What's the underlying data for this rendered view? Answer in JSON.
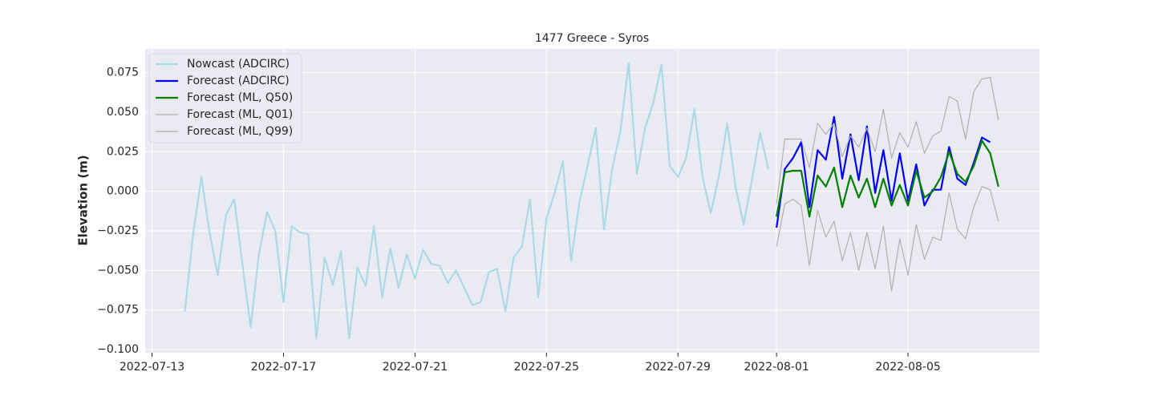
{
  "chart_data": {
    "type": "line",
    "title": "1477 Greece - Syros",
    "y_label": "Elevation (m)",
    "xlim": [
      "2022-07-12 19:00",
      "2022-08-09 00:00"
    ],
    "xticks": [
      "2022-07-13",
      "2022-07-17",
      "2022-07-21",
      "2022-07-25",
      "2022-07-29",
      "2022-08-01",
      "2022-08-05"
    ],
    "ylim": [
      -0.102,
      0.09
    ],
    "yticks": [
      {
        "value": -0.1,
        "label": "−0.100"
      },
      {
        "value": -0.075,
        "label": "−0.075"
      },
      {
        "value": -0.05,
        "label": "−0.050"
      },
      {
        "value": -0.025,
        "label": "−0.025"
      },
      {
        "value": 0,
        "label": "0.000"
      },
      {
        "value": 0.025,
        "label": "0.025"
      },
      {
        "value": 0.05,
        "label": "0.050"
      },
      {
        "value": 0.075,
        "label": "0.075"
      }
    ],
    "grid": true,
    "legend": "upper left",
    "x": [
      "2022-07-14 00:00",
      "2022-07-14 06:00",
      "2022-07-14 12:00",
      "2022-07-14 18:00",
      "2022-07-15 00:00",
      "2022-07-15 06:00",
      "2022-07-15 12:00",
      "2022-07-15 18:00",
      "2022-07-16 00:00",
      "2022-07-16 06:00",
      "2022-07-16 12:00",
      "2022-07-16 18:00",
      "2022-07-17 00:00",
      "2022-07-17 06:00",
      "2022-07-17 12:00",
      "2022-07-17 18:00",
      "2022-07-18 00:00",
      "2022-07-18 06:00",
      "2022-07-18 12:00",
      "2022-07-18 18:00",
      "2022-07-19 00:00",
      "2022-07-19 06:00",
      "2022-07-19 12:00",
      "2022-07-19 18:00",
      "2022-07-20 00:00",
      "2022-07-20 06:00",
      "2022-07-20 12:00",
      "2022-07-20 18:00",
      "2022-07-21 00:00",
      "2022-07-21 06:00",
      "2022-07-21 12:00",
      "2022-07-21 18:00",
      "2022-07-22 00:00",
      "2022-07-22 06:00",
      "2022-07-22 12:00",
      "2022-07-22 18:00",
      "2022-07-23 00:00",
      "2022-07-23 06:00",
      "2022-07-23 12:00",
      "2022-07-23 18:00",
      "2022-07-24 00:00",
      "2022-07-24 06:00",
      "2022-07-24 12:00",
      "2022-07-24 18:00",
      "2022-07-25 00:00",
      "2022-07-25 06:00",
      "2022-07-25 12:00",
      "2022-07-25 18:00",
      "2022-07-26 00:00",
      "2022-07-26 06:00",
      "2022-07-26 12:00",
      "2022-07-26 18:00",
      "2022-07-27 00:00",
      "2022-07-27 06:00",
      "2022-07-27 12:00",
      "2022-07-27 18:00",
      "2022-07-28 00:00",
      "2022-07-28 06:00",
      "2022-07-28 12:00",
      "2022-07-28 18:00",
      "2022-07-29 00:00",
      "2022-07-29 06:00",
      "2022-07-29 12:00",
      "2022-07-29 18:00",
      "2022-07-30 00:00",
      "2022-07-30 06:00",
      "2022-07-30 12:00",
      "2022-07-30 18:00",
      "2022-07-31 00:00",
      "2022-07-31 06:00",
      "2022-07-31 12:00",
      "2022-07-31 18:00",
      "2022-08-01 00:00",
      "2022-08-01 06:00",
      "2022-08-01 12:00",
      "2022-08-01 18:00",
      "2022-08-02 00:00",
      "2022-08-02 06:00",
      "2022-08-02 12:00",
      "2022-08-02 18:00",
      "2022-08-03 00:00",
      "2022-08-03 06:00",
      "2022-08-03 12:00",
      "2022-08-03 18:00",
      "2022-08-04 00:00",
      "2022-08-04 06:00",
      "2022-08-04 12:00",
      "2022-08-04 18:00",
      "2022-08-05 00:00",
      "2022-08-05 06:00",
      "2022-08-05 12:00",
      "2022-08-05 18:00",
      "2022-08-06 00:00",
      "2022-08-06 06:00",
      "2022-08-06 12:00",
      "2022-08-06 18:00",
      "2022-08-07 00:00",
      "2022-08-07 06:00",
      "2022-08-07 12:00",
      "2022-08-07 18:00"
    ],
    "series": [
      {
        "name": "Nowcast (ADCIRC)",
        "color": "#add8e6",
        "width": 2.2,
        "values": [
          -0.076,
          -0.027,
          0.009,
          -0.026,
          -0.053,
          -0.015,
          -0.005,
          -0.046,
          -0.086,
          -0.04,
          -0.013,
          -0.025,
          -0.07,
          -0.022,
          -0.026,
          -0.027,
          -0.093,
          -0.042,
          -0.059,
          -0.038,
          -0.093,
          -0.048,
          -0.06,
          -0.022,
          -0.067,
          -0.036,
          -0.061,
          -0.04,
          -0.055,
          -0.037,
          -0.046,
          -0.047,
          -0.058,
          -0.05,
          -0.061,
          -0.072,
          -0.07,
          -0.051,
          -0.049,
          -0.076,
          -0.042,
          -0.035,
          -0.005,
          -0.067,
          -0.017,
          -0.001,
          0.019,
          -0.044,
          -0.007,
          0.016,
          0.04,
          -0.024,
          0.014,
          0.038,
          0.081,
          0.011,
          0.04,
          0.056,
          0.08,
          0.016,
          0.009,
          0.021,
          0.052,
          0.009,
          -0.014,
          0.01,
          0.043,
          0.003,
          -0.021,
          0.007,
          0.037,
          0.014,
          null,
          null,
          null,
          null,
          null,
          null,
          null,
          null,
          null,
          null,
          null,
          null,
          null,
          null,
          null,
          null,
          null,
          null,
          null,
          null,
          null,
          null,
          null,
          null,
          null,
          null,
          null,
          null
        ]
      },
      {
        "name": "Forecast (ADCIRC)",
        "color": "#0000ff",
        "width": 2.2,
        "values": [
          null,
          null,
          null,
          null,
          null,
          null,
          null,
          null,
          null,
          null,
          null,
          null,
          null,
          null,
          null,
          null,
          null,
          null,
          null,
          null,
          null,
          null,
          null,
          null,
          null,
          null,
          null,
          null,
          null,
          null,
          null,
          null,
          null,
          null,
          null,
          null,
          null,
          null,
          null,
          null,
          null,
          null,
          null,
          null,
          null,
          null,
          null,
          null,
          null,
          null,
          null,
          null,
          null,
          null,
          null,
          null,
          null,
          null,
          null,
          null,
          null,
          null,
          null,
          null,
          null,
          null,
          null,
          null,
          null,
          null,
          null,
          null,
          -0.023,
          0.014,
          0.021,
          0.031,
          -0.01,
          0.026,
          0.02,
          0.047,
          0.008,
          0.036,
          0.007,
          0.041,
          -0.001,
          0.026,
          -0.006,
          0.024,
          -0.006,
          0.017,
          -0.009,
          0.001,
          0.001,
          0.028,
          0.008,
          0.004,
          0.018,
          0.034,
          0.031,
          null
        ]
      },
      {
        "name": "Forecast (ML, Q50)",
        "color": "#008000",
        "width": 2.2,
        "values": [
          null,
          null,
          null,
          null,
          null,
          null,
          null,
          null,
          null,
          null,
          null,
          null,
          null,
          null,
          null,
          null,
          null,
          null,
          null,
          null,
          null,
          null,
          null,
          null,
          null,
          null,
          null,
          null,
          null,
          null,
          null,
          null,
          null,
          null,
          null,
          null,
          null,
          null,
          null,
          null,
          null,
          null,
          null,
          null,
          null,
          null,
          null,
          null,
          null,
          null,
          null,
          null,
          null,
          null,
          null,
          null,
          null,
          null,
          null,
          null,
          null,
          null,
          null,
          null,
          null,
          null,
          null,
          null,
          null,
          null,
          null,
          null,
          -0.016,
          0.012,
          0.013,
          0.013,
          -0.016,
          0.01,
          0.003,
          0.015,
          -0.01,
          0.01,
          -0.004,
          0.008,
          -0.01,
          0.008,
          -0.009,
          0.004,
          -0.009,
          0.013,
          -0.004,
          0,
          0.009,
          0.025,
          0.011,
          0.006,
          0.016,
          0.032,
          0.024,
          0.003
        ]
      },
      {
        "name": "Forecast (ML, Q01)",
        "color": "#b0b0b0",
        "width": 1.2,
        "values": [
          null,
          null,
          null,
          null,
          null,
          null,
          null,
          null,
          null,
          null,
          null,
          null,
          null,
          null,
          null,
          null,
          null,
          null,
          null,
          null,
          null,
          null,
          null,
          null,
          null,
          null,
          null,
          null,
          null,
          null,
          null,
          null,
          null,
          null,
          null,
          null,
          null,
          null,
          null,
          null,
          null,
          null,
          null,
          null,
          null,
          null,
          null,
          null,
          null,
          null,
          null,
          null,
          null,
          null,
          null,
          null,
          null,
          null,
          null,
          null,
          null,
          null,
          null,
          null,
          null,
          null,
          null,
          null,
          null,
          null,
          null,
          null,
          -0.035,
          -0.008,
          -0.005,
          -0.009,
          -0.047,
          -0.012,
          -0.029,
          -0.019,
          -0.044,
          -0.026,
          -0.05,
          -0.026,
          -0.049,
          -0.022,
          -0.063,
          -0.03,
          -0.053,
          -0.021,
          -0.043,
          -0.029,
          -0.031,
          -0.001,
          -0.024,
          -0.03,
          -0.01,
          0.003,
          0.001,
          -0.019
        ]
      },
      {
        "name": "Forecast (ML, Q99)",
        "color": "#b0b0b0",
        "width": 1.2,
        "values": [
          null,
          null,
          null,
          null,
          null,
          null,
          null,
          null,
          null,
          null,
          null,
          null,
          null,
          null,
          null,
          null,
          null,
          null,
          null,
          null,
          null,
          null,
          null,
          null,
          null,
          null,
          null,
          null,
          null,
          null,
          null,
          null,
          null,
          null,
          null,
          null,
          null,
          null,
          null,
          null,
          null,
          null,
          null,
          null,
          null,
          null,
          null,
          null,
          null,
          null,
          null,
          null,
          null,
          null,
          null,
          null,
          null,
          null,
          null,
          null,
          null,
          null,
          null,
          null,
          null,
          null,
          null,
          null,
          null,
          null,
          null,
          null,
          -0.008,
          0.033,
          0.033,
          0.033,
          0.015,
          0.043,
          0.036,
          0.043,
          0.022,
          0.035,
          0.028,
          0.04,
          0.025,
          0.052,
          0.021,
          0.037,
          0.028,
          0.044,
          0.024,
          0.035,
          0.038,
          0.06,
          0.057,
          0.033,
          0.063,
          0.071,
          0.072,
          0.045
        ]
      }
    ]
  }
}
